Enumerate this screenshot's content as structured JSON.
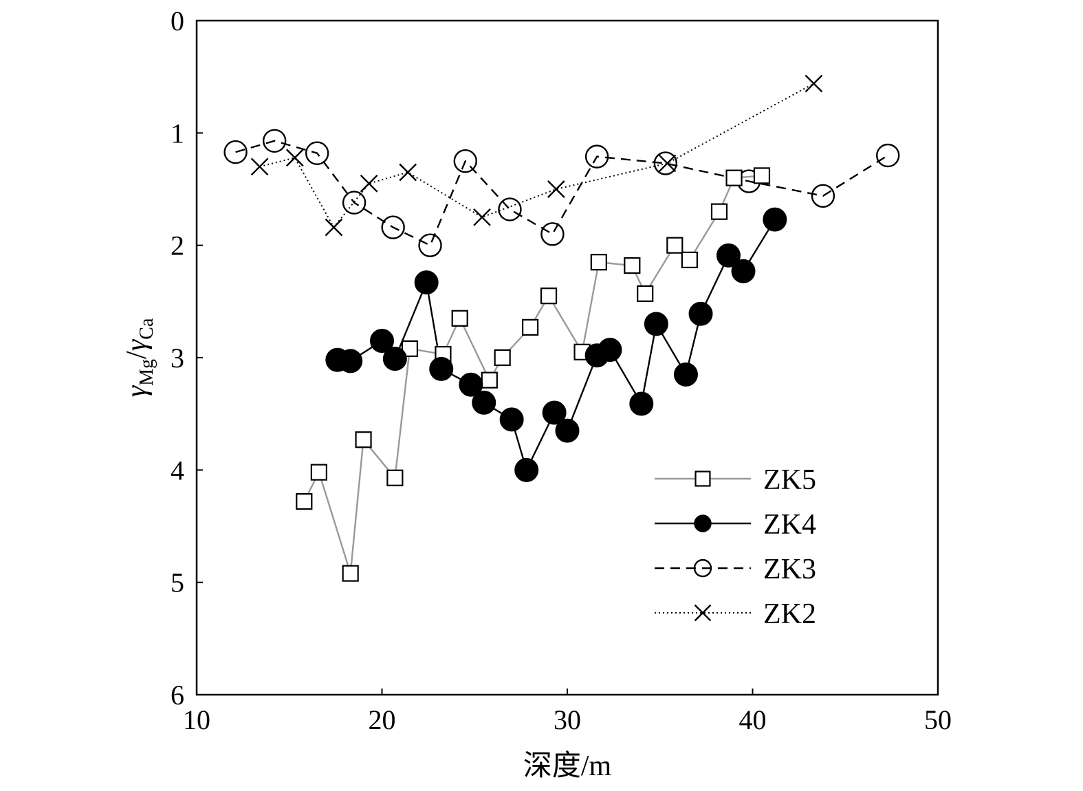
{
  "chart_data": {
    "type": "line",
    "xlabel": "深度/m",
    "ylabel": {
      "base": "γ",
      "sub1": "Mg",
      "slash": "/",
      "sub2": "Ca"
    },
    "xlim": [
      10,
      50
    ],
    "ylim": [
      0,
      6
    ],
    "y_inverted": true,
    "x_ticks": [
      10,
      20,
      30,
      40,
      50
    ],
    "y_ticks": [
      0,
      1,
      2,
      3,
      4,
      5,
      6
    ],
    "grid": false,
    "legend_position": "bottom-right",
    "series": [
      {
        "name": "ZK5",
        "marker": "open-square",
        "line_style": "solid",
        "color": "#999999",
        "marker_color": "#000000",
        "points": [
          [
            15.8,
            4.28
          ],
          [
            16.6,
            4.02
          ],
          [
            18.3,
            4.92
          ],
          [
            19.0,
            3.73
          ],
          [
            20.7,
            4.07
          ],
          [
            21.5,
            2.92
          ],
          [
            23.3,
            2.97
          ],
          [
            24.2,
            2.65
          ],
          [
            25.8,
            3.2
          ],
          [
            26.5,
            3.0
          ],
          [
            28.0,
            2.73
          ],
          [
            29.0,
            2.45
          ],
          [
            30.8,
            2.95
          ],
          [
            31.7,
            2.15
          ],
          [
            33.5,
            2.18
          ],
          [
            34.2,
            2.43
          ],
          [
            35.8,
            2.0
          ],
          [
            36.6,
            2.13
          ],
          [
            38.2,
            1.7
          ],
          [
            39.0,
            1.4
          ],
          [
            40.5,
            1.38
          ]
        ]
      },
      {
        "name": "ZK4",
        "marker": "filled-circle",
        "line_style": "solid",
        "color": "#000000",
        "marker_color": "#000000",
        "points": [
          [
            17.6,
            3.02
          ],
          [
            18.3,
            3.03
          ],
          [
            20.0,
            2.85
          ],
          [
            20.7,
            3.01
          ],
          [
            22.4,
            2.33
          ],
          [
            23.2,
            3.1
          ],
          [
            24.8,
            3.24
          ],
          [
            25.5,
            3.4
          ],
          [
            27.0,
            3.55
          ],
          [
            27.8,
            4.0
          ],
          [
            29.3,
            3.49
          ],
          [
            30.0,
            3.65
          ],
          [
            31.6,
            2.98
          ],
          [
            32.3,
            2.93
          ],
          [
            34.0,
            3.41
          ],
          [
            34.8,
            2.7
          ],
          [
            36.4,
            3.15
          ],
          [
            37.2,
            2.61
          ],
          [
            38.7,
            2.09
          ],
          [
            39.5,
            2.23
          ],
          [
            41.2,
            1.77
          ]
        ]
      },
      {
        "name": "ZK3",
        "marker": "open-circle",
        "line_style": "dashed",
        "color": "#000000",
        "marker_color": "#000000",
        "points": [
          [
            12.1,
            1.17
          ],
          [
            14.2,
            1.07
          ],
          [
            16.5,
            1.18
          ],
          [
            18.5,
            1.62
          ],
          [
            20.6,
            1.84
          ],
          [
            22.6,
            2.0
          ],
          [
            24.5,
            1.25
          ],
          [
            26.9,
            1.68
          ],
          [
            29.2,
            1.9
          ],
          [
            31.6,
            1.21
          ],
          [
            35.3,
            1.27
          ],
          [
            39.8,
            1.43
          ],
          [
            43.8,
            1.56
          ],
          [
            47.3,
            1.2
          ]
        ]
      },
      {
        "name": "ZK2",
        "marker": "cross",
        "line_style": "dotted",
        "color": "#000000",
        "marker_color": "#000000",
        "points": [
          [
            13.4,
            1.3
          ],
          [
            15.3,
            1.22
          ],
          [
            17.4,
            1.84
          ],
          [
            19.3,
            1.45
          ],
          [
            21.4,
            1.35
          ],
          [
            25.4,
            1.75
          ],
          [
            29.4,
            1.5
          ],
          [
            35.4,
            1.27
          ],
          [
            43.3,
            0.56
          ]
        ]
      }
    ]
  }
}
